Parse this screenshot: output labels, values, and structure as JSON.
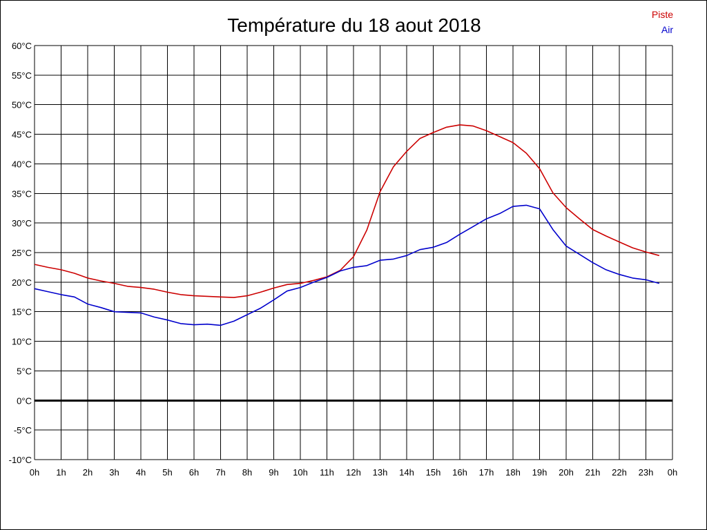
{
  "chart_data": {
    "type": "line",
    "title": "Température du 18 aout 2018",
    "xlabel": "",
    "ylabel": "",
    "x_unit": "hours",
    "xlim": [
      0,
      24
    ],
    "ylim": [
      -10,
      60
    ],
    "y_ticks": [
      60,
      55,
      50,
      45,
      40,
      35,
      30,
      25,
      20,
      15,
      10,
      5,
      0,
      -5,
      -10
    ],
    "y_tick_labels": [
      "60°C",
      "55°C",
      "50°C",
      "45°C",
      "40°C",
      "35°C",
      "30°C",
      "25°C",
      "20°C",
      "15°C",
      "10°C",
      "5°C",
      "0°C",
      "-5°C",
      "-10°C"
    ],
    "x_ticks": [
      0,
      1,
      2,
      3,
      4,
      5,
      6,
      7,
      8,
      9,
      10,
      11,
      12,
      13,
      14,
      15,
      16,
      17,
      18,
      19,
      20,
      21,
      22,
      23,
      24
    ],
    "x_tick_labels": [
      "0h",
      "1h",
      "2h",
      "3h",
      "4h",
      "5h",
      "6h",
      "7h",
      "8h",
      "9h",
      "10h",
      "11h",
      "12h",
      "13h",
      "14h",
      "15h",
      "16h",
      "17h",
      "18h",
      "19h",
      "20h",
      "21h",
      "22h",
      "23h",
      "0h"
    ],
    "grid": true,
    "legend_position": "top-right",
    "zero_line": true,
    "series": [
      {
        "name": "Piste",
        "color": "#cc0000",
        "x": [
          0,
          0.5,
          1,
          1.5,
          2,
          2.5,
          3,
          3.5,
          4,
          4.5,
          5,
          5.5,
          6,
          6.5,
          7,
          7.5,
          8,
          8.5,
          9,
          9.5,
          10,
          10.5,
          11,
          11.5,
          12,
          12.5,
          13,
          13.5,
          14,
          14.5,
          15,
          15.5,
          16,
          16.5,
          17,
          17.5,
          18,
          18.5,
          19,
          19.5,
          20,
          20.5,
          21,
          21.5,
          22,
          22.5,
          23,
          23.5
        ],
        "values": [
          23.0,
          22.5,
          22.1,
          21.5,
          20.7,
          20.2,
          19.8,
          19.3,
          19.1,
          18.8,
          18.3,
          17.9,
          17.7,
          17.6,
          17.5,
          17.4,
          17.7,
          18.3,
          19.0,
          19.6,
          19.8,
          20.3,
          20.9,
          22.0,
          24.3,
          28.8,
          35.3,
          39.5,
          42.1,
          44.3,
          45.3,
          46.2,
          46.6,
          46.4,
          45.6,
          44.6,
          43.6,
          41.8,
          39.2,
          35.1,
          32.6,
          30.7,
          28.9,
          27.8,
          26.8,
          25.8,
          25.1,
          24.5
        ]
      },
      {
        "name": "Air",
        "color": "#0000cc",
        "x": [
          0,
          0.5,
          1,
          1.5,
          2,
          2.5,
          3,
          3.5,
          4,
          4.5,
          5,
          5.5,
          6,
          6.5,
          7,
          7.5,
          8,
          8.5,
          9,
          9.5,
          10,
          10.5,
          11,
          11.5,
          12,
          12.5,
          13,
          13.5,
          14,
          14.5,
          15,
          15.5,
          16,
          16.5,
          17,
          17.5,
          18,
          18.5,
          19,
          19.5,
          20,
          20.5,
          21,
          21.5,
          22,
          22.5,
          23,
          23.5
        ],
        "values": [
          18.9,
          18.4,
          17.9,
          17.5,
          16.3,
          15.7,
          15.0,
          14.9,
          14.8,
          14.1,
          13.6,
          13.0,
          12.8,
          12.9,
          12.7,
          13.4,
          14.5,
          15.6,
          17.0,
          18.5,
          19.1,
          20.0,
          20.8,
          21.9,
          22.5,
          22.8,
          23.7,
          23.9,
          24.5,
          25.5,
          25.9,
          26.7,
          28.1,
          29.4,
          30.7,
          31.6,
          32.8,
          33.0,
          32.4,
          28.9,
          26.1,
          24.7,
          23.3,
          22.1,
          21.3,
          20.7,
          20.4,
          19.8
        ]
      }
    ]
  }
}
